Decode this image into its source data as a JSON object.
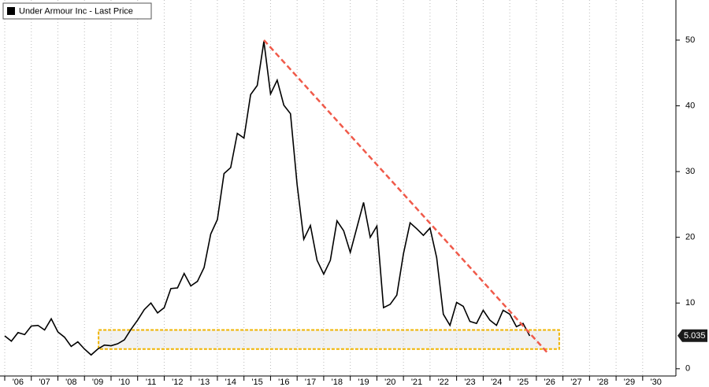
{
  "chart_data": {
    "type": "line",
    "x": [
      2006,
      2006.25,
      2006.5,
      2006.75,
      2007,
      2007.25,
      2007.5,
      2007.75,
      2008,
      2008.25,
      2008.5,
      2008.75,
      2009,
      2009.25,
      2009.5,
      2009.75,
      2010,
      2010.25,
      2010.5,
      2010.75,
      2011,
      2011.25,
      2011.5,
      2011.75,
      2012,
      2012.25,
      2012.5,
      2012.75,
      2013,
      2013.25,
      2013.5,
      2013.75,
      2014,
      2014.25,
      2014.5,
      2014.75,
      2015,
      2015.25,
      2015.5,
      2015.75,
      2016,
      2016.25,
      2016.5,
      2016.75,
      2017,
      2017.25,
      2017.5,
      2017.75,
      2018,
      2018.25,
      2018.5,
      2018.75,
      2019,
      2019.25,
      2019.5,
      2019.75,
      2020,
      2020.25,
      2020.5,
      2020.75,
      2021,
      2021.25,
      2021.5,
      2021.75,
      2022,
      2022.25,
      2022.5,
      2022.75,
      2023,
      2023.25,
      2023.5,
      2023.75,
      2024,
      2024.25,
      2024.5,
      2024.75,
      2025,
      2025.25,
      2025.5,
      2025.75
    ],
    "series": [
      {
        "name": "Under Armour Inc - Last Price",
        "color": "#000000",
        "values": [
          5.0,
          4.2,
          5.5,
          5.2,
          6.5,
          6.6,
          5.9,
          7.6,
          5.6,
          4.8,
          3.4,
          4.1,
          3.0,
          2.1,
          3.0,
          3.6,
          3.5,
          3.8,
          4.4,
          6.0,
          7.4,
          9.0,
          10.0,
          8.5,
          9.3,
          12.2,
          12.3,
          14.5,
          12.6,
          13.3,
          15.4,
          20.5,
          22.7,
          29.7,
          30.6,
          35.8,
          35.1,
          41.7,
          43.1,
          49.8,
          41.8,
          43.9,
          40.1,
          38.8,
          28.0,
          19.7,
          21.8,
          16.5,
          14.4,
          16.5,
          22.5,
          21.0,
          17.7,
          21.5,
          25.3,
          20.0,
          21.7,
          9.3,
          9.8,
          11.2,
          17.5,
          22.2,
          21.3,
          20.3,
          21.4,
          16.9,
          8.3,
          6.6,
          10.1,
          9.5,
          7.2,
          6.9,
          8.9,
          7.4,
          6.6,
          8.9,
          8.3,
          6.4,
          6.9,
          5.0
        ]
      }
    ],
    "last_price": 5.035,
    "trendline": {
      "x": [
        2015.75,
        2026.47
      ],
      "values": [
        50,
        2.2
      ],
      "color": "#f05a4a"
    },
    "highlight_box": {
      "x": [
        2009.53,
        2026.86
      ],
      "values": [
        3.0,
        5.9
      ],
      "color": "#f0b400"
    },
    "xlim": [
      2006,
      2031.25
    ],
    "xticks": [
      {
        "value": 2006,
        "label": "'06"
      },
      {
        "value": 2007,
        "label": "'07"
      },
      {
        "value": 2008,
        "label": "'08"
      },
      {
        "value": 2009,
        "label": "'09"
      },
      {
        "value": 2010,
        "label": "'10"
      },
      {
        "value": 2011,
        "label": "'11"
      },
      {
        "value": 2012,
        "label": "'12"
      },
      {
        "value": 2013,
        "label": "'13"
      },
      {
        "value": 2014,
        "label": "'14"
      },
      {
        "value": 2015,
        "label": "'15"
      },
      {
        "value": 2016,
        "label": "'16"
      },
      {
        "value": 2017,
        "label": "'17"
      },
      {
        "value": 2018,
        "label": "'18"
      },
      {
        "value": 2019,
        "label": "'19"
      },
      {
        "value": 2020,
        "label": "'20"
      },
      {
        "value": 2021,
        "label": "'21"
      },
      {
        "value": 2022,
        "label": "'22"
      },
      {
        "value": 2023,
        "label": "'23"
      },
      {
        "value": 2024,
        "label": "'24"
      },
      {
        "value": 2025,
        "label": "'25"
      },
      {
        "value": 2026,
        "label": "'26"
      },
      {
        "value": 2027,
        "label": "'27"
      },
      {
        "value": 2028,
        "label": "'28"
      },
      {
        "value": 2029,
        "label": "'29"
      },
      {
        "value": 2030,
        "label": "'30"
      }
    ],
    "ylim": [
      -1.1,
      56.1
    ],
    "yticks": [
      0,
      10,
      20,
      30,
      40,
      50
    ],
    "grid": true
  }
}
